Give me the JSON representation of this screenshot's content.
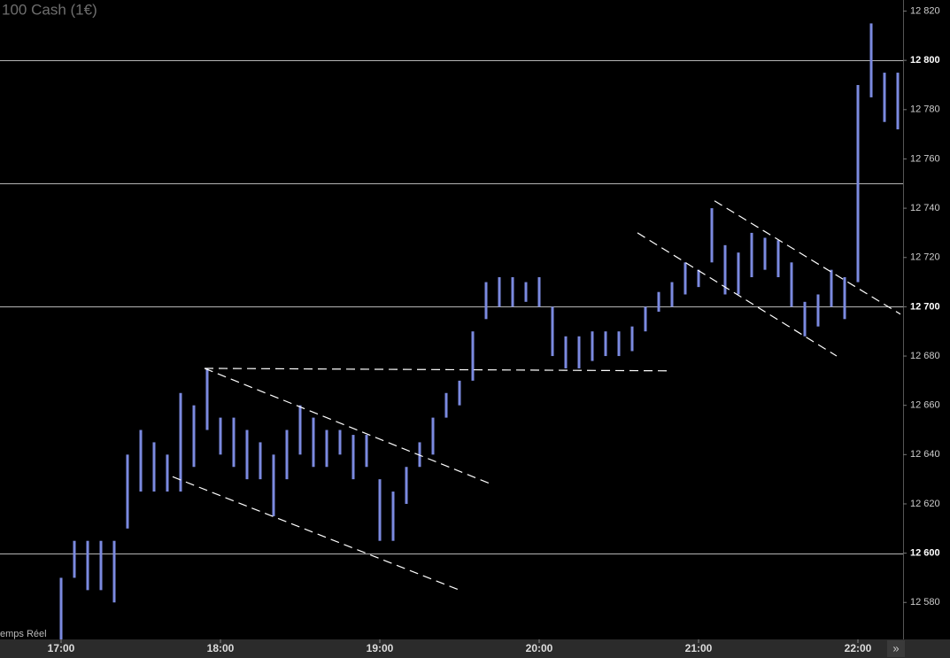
{
  "title": "100 Cash (1€)",
  "footer_left": "emps Réel",
  "scroll_button": "»",
  "chart_data": {
    "type": "range-bar",
    "color": "#7b8ae0",
    "x": [
      0,
      5,
      10,
      15,
      20,
      25,
      30,
      35,
      40,
      45,
      50,
      55,
      60,
      65,
      70,
      75,
      80,
      85,
      90,
      95,
      100,
      105,
      110,
      115,
      120,
      125,
      130,
      135,
      140,
      145,
      150,
      155,
      160,
      165,
      170,
      175,
      180,
      185,
      190,
      195,
      200,
      205,
      210,
      215,
      220,
      225,
      230,
      235,
      240,
      245,
      250,
      255,
      260,
      265,
      270,
      275,
      280,
      285,
      290,
      295,
      300,
      305,
      310,
      315
    ],
    "low": [
      12565,
      12590,
      12585,
      12585,
      12580,
      12610,
      12625,
      12625,
      12625,
      12625,
      12635,
      12650,
      12640,
      12635,
      12630,
      12630,
      12615,
      12630,
      12640,
      12635,
      12635,
      12640,
      12630,
      12635,
      12605,
      12605,
      12620,
      12635,
      12640,
      12655,
      12660,
      12670,
      12695,
      12700,
      12700,
      12702,
      12700,
      12680,
      12675,
      12675,
      12678,
      12680,
      12680,
      12682,
      12690,
      12698,
      12700,
      12705,
      12708,
      12718,
      12705,
      12705,
      12712,
      12715,
      12712,
      12700,
      12688,
      12692,
      12700,
      12695,
      12710,
      12785,
      12775,
      12772
    ],
    "high": [
      12590,
      12605,
      12605,
      12605,
      12605,
      12640,
      12650,
      12645,
      12640,
      12665,
      12660,
      12675,
      12655,
      12655,
      12650,
      12645,
      12640,
      12650,
      12660,
      12655,
      12650,
      12650,
      12648,
      12648,
      12630,
      12625,
      12635,
      12645,
      12655,
      12665,
      12670,
      12690,
      12710,
      12712,
      12712,
      12710,
      12712,
      12700,
      12688,
      12688,
      12690,
      12690,
      12690,
      12692,
      12700,
      12706,
      12710,
      12718,
      12715,
      12740,
      12725,
      12722,
      12730,
      12728,
      12727,
      12718,
      12702,
      12705,
      12715,
      12712,
      12790,
      12815,
      12795,
      12795
    ],
    "xlim": [
      -23,
      317
    ],
    "xticks": [
      {
        "value": 0,
        "label": "17:00"
      },
      {
        "value": 60,
        "label": "18:00"
      },
      {
        "value": 120,
        "label": "19:00"
      },
      {
        "value": 180,
        "label": "20:00"
      },
      {
        "value": 240,
        "label": "21:00"
      },
      {
        "value": 300,
        "label": "22:00"
      }
    ],
    "ylim": [
      12565,
      12824.5
    ],
    "yticks": [
      {
        "value": 12580,
        "label": "12 580"
      },
      {
        "value": 12600,
        "label": "12 600"
      },
      {
        "value": 12620,
        "label": "12 620"
      },
      {
        "value": 12640,
        "label": "12 640"
      },
      {
        "value": 12660,
        "label": "12 660"
      },
      {
        "value": 12680,
        "label": "12 680"
      },
      {
        "value": 12700,
        "label": "12 700"
      },
      {
        "value": 12720,
        "label": "12 720"
      },
      {
        "value": 12740,
        "label": "12 740"
      },
      {
        "value": 12760,
        "label": "12 760"
      },
      {
        "value": 12780,
        "label": "12 780"
      },
      {
        "value": 12800,
        "label": "12 800"
      },
      {
        "value": 12820,
        "label": "12 820"
      }
    ],
    "hlines": [
      12600,
      12700,
      12750,
      12800
    ],
    "trendlines": [
      [
        [
          54,
          12675
        ],
        [
          162,
          12628
        ]
      ],
      [
        [
          42,
          12631
        ],
        [
          150,
          12585
        ]
      ],
      [
        [
          54,
          12675
        ],
        [
          228,
          12674
        ]
      ],
      [
        [
          217,
          12730
        ],
        [
          292,
          12680
        ]
      ],
      [
        [
          246,
          12743
        ],
        [
          316,
          12697
        ]
      ]
    ]
  }
}
